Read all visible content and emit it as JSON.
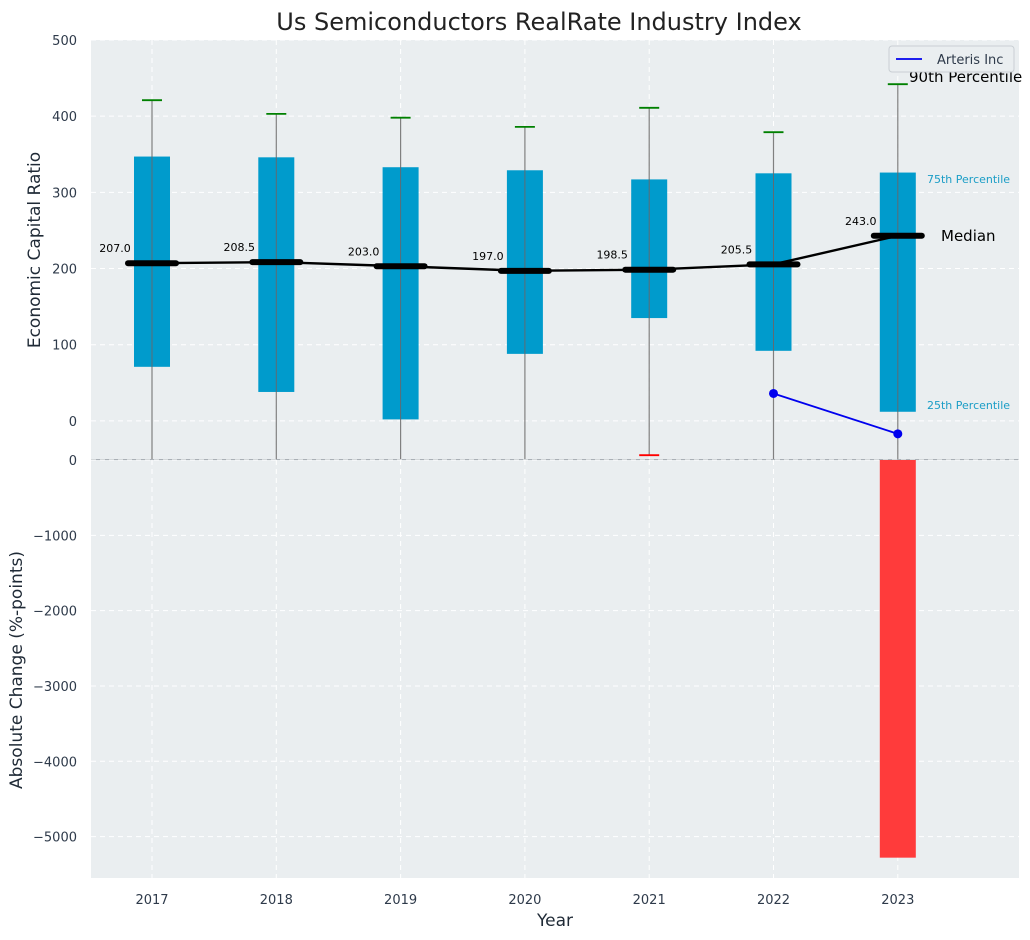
{
  "chart_data": {
    "title": "Us Semiconductors RealRate Industry Index",
    "xlabel": "Year",
    "categories": [
      "2017",
      "2018",
      "2019",
      "2020",
      "2021",
      "2022",
      "2023"
    ],
    "top_panel": {
      "type": "box",
      "ylabel": "Economic Capital Ratio",
      "ylim": [
        -50,
        500
      ],
      "yticks": [
        0,
        100,
        200,
        300,
        400,
        500
      ],
      "boxes": [
        {
          "year": "2017",
          "p10": -50,
          "p25": 71,
          "median": 207.0,
          "p75": 347,
          "p90": 421,
          "median_label": "207.0"
        },
        {
          "year": "2018",
          "p10": -50,
          "p25": 38,
          "median": 208.5,
          "p75": 346,
          "p90": 403,
          "median_label": "208.5"
        },
        {
          "year": "2019",
          "p10": -50,
          "p25": 2,
          "median": 203.0,
          "p75": 333,
          "p90": 398,
          "median_label": "203.0"
        },
        {
          "year": "2020",
          "p10": -50,
          "p25": 88,
          "median": 197.0,
          "p75": 329,
          "p90": 386,
          "median_label": "197.0"
        },
        {
          "year": "2021",
          "p10": -45,
          "p25": 135,
          "median": 198.5,
          "p75": 317,
          "p90": 411,
          "median_label": "198.5"
        },
        {
          "year": "2022",
          "p10": -50,
          "p25": 92,
          "median": 205.5,
          "p75": 325,
          "p90": 379,
          "median_label": "205.5"
        },
        {
          "year": "2023",
          "p10": -50,
          "p25": 12,
          "median": 243.0,
          "p75": 326,
          "p90": 442,
          "median_label": "243.0"
        }
      ],
      "series": [
        {
          "name": "Arteris Inc",
          "color": "#0000ee",
          "x": [
            "2022",
            "2023"
          ],
          "values": [
            36,
            -17
          ]
        }
      ],
      "annotations": {
        "p90": "90th Percentile",
        "p75": "75th Percentile",
        "median": "Median",
        "p25": "25th Percentile"
      },
      "legend_position": "top-right"
    },
    "bottom_panel": {
      "type": "bar",
      "ylabel": "Absolute Change (%-points)",
      "ylim": [
        -5550,
        0
      ],
      "yticks": [
        0,
        -1000,
        -2000,
        -3000,
        -4000,
        -5000
      ],
      "ytick_labels": [
        "0",
        "−1000",
        "−2000",
        "−3000",
        "−4000",
        "−5000"
      ],
      "bars": [
        {
          "year": "2023",
          "value": -5280,
          "color": "#ff3b3b"
        }
      ]
    },
    "colors": {
      "box": "#009bcc",
      "median_line": "#000000",
      "whisker_cap": "#008000",
      "low_cap": "#ff0000",
      "plot_bg": "#eaeef0",
      "grid": "#ffffff"
    },
    "grid": true
  }
}
